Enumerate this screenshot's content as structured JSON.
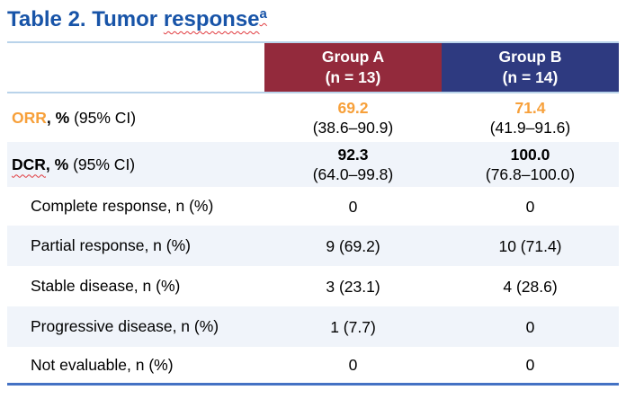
{
  "title": {
    "lead": "Table 2. Tumor ",
    "misspelled": "response",
    "superscript": "a"
  },
  "colors": {
    "title_blue": "#1854A8",
    "group_a_header_bg": "#932A3C",
    "group_b_header_bg": "#2E3A80",
    "accent_orange": "#F7A03A",
    "stripe_bg": "#F0F4FA",
    "rule_light": "#B9D3EA",
    "rule_strong": "#4472C4",
    "spellcheck_red": "#E0393E"
  },
  "table": {
    "columns": [
      {
        "name": "Group A",
        "n": "(n = 13)"
      },
      {
        "name": "Group B",
        "n": "(n = 14)"
      }
    ],
    "rows": [
      {
        "label_em": "ORR",
        "label_bold": ", %",
        "label_rest": "(95% CI)",
        "group_a": {
          "value": "69.2",
          "ci": "(38.6–90.9)"
        },
        "group_b": {
          "value": "71.4",
          "ci": "(41.9–91.6)"
        }
      },
      {
        "label_em": "DCR",
        "label_bold": ", %",
        "label_rest": "(95% CI)",
        "group_a": {
          "value": "92.3",
          "ci": "(64.0–99.8)"
        },
        "group_b": {
          "value": "100.0",
          "ci": "(76.8–100.0)"
        }
      },
      {
        "label": "Complete response, n (%)",
        "group_a": {
          "value": "0"
        },
        "group_b": {
          "value": "0"
        }
      },
      {
        "label": "Partial response, n (%)",
        "group_a": {
          "value": "9 (69.2)"
        },
        "group_b": {
          "value": "10 (71.4)"
        }
      },
      {
        "label": "Stable disease, n (%)",
        "group_a": {
          "value": "3 (23.1)"
        },
        "group_b": {
          "value": "4 (28.6)"
        }
      },
      {
        "label": "Progressive disease, n (%)",
        "group_a": {
          "value": "1 (7.7)"
        },
        "group_b": {
          "value": "0"
        }
      },
      {
        "label": "Not evaluable, n (%)",
        "group_a": {
          "value": "0"
        },
        "group_b": {
          "value": "0"
        }
      }
    ]
  }
}
